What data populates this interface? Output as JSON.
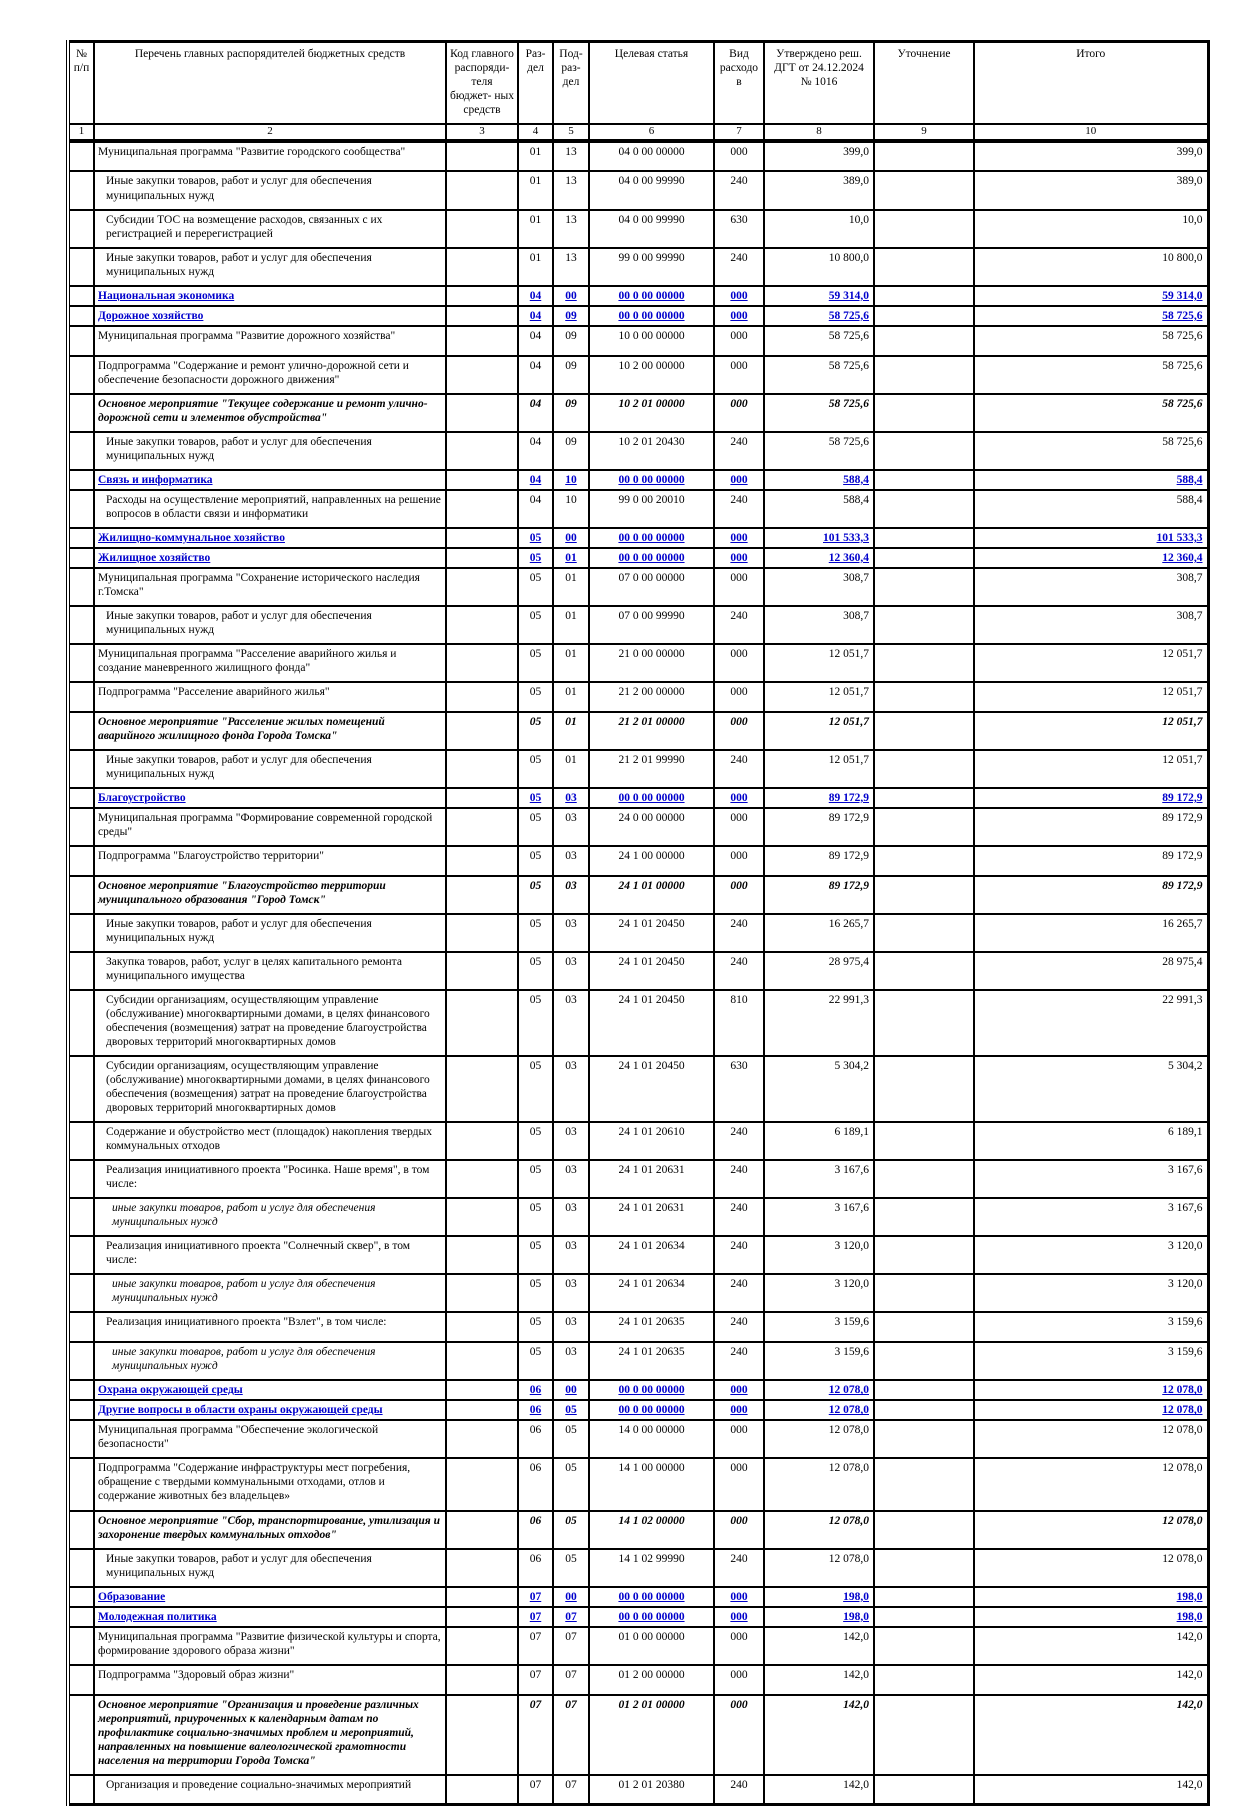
{
  "colors": {
    "section_blue": "#0000cc",
    "text_black": "#000000",
    "border_black": "#000000",
    "page_background": "#ffffff"
  },
  "table": {
    "header": {
      "columns": [
        {
          "num": "1",
          "label": "№ п/п"
        },
        {
          "num": "2",
          "label": "Перечень главных распорядителей бюджетных средств"
        },
        {
          "num": "3",
          "label": "Код главного распоряди- теля бюджет- ных средств"
        },
        {
          "num": "4",
          "label": "Раз- дел"
        },
        {
          "num": "5",
          "label": "Под- раз- дел"
        },
        {
          "num": "6",
          "label": "Целевая статья"
        },
        {
          "num": "7",
          "label": "Вид расходов"
        },
        {
          "num": "8",
          "label": "Утверждено реш. ДГТ от 24.12.2024 № 1016"
        },
        {
          "num": "9",
          "label": "Уточнение"
        },
        {
          "num": "10",
          "label": "Итого"
        }
      ]
    },
    "rows": [
      {
        "name": "Муниципальная программа \"Развитие городского сообщества\"",
        "rd": "01",
        "prd": "13",
        "cs": "04 0 00 00000",
        "vr": "000",
        "approved": "399,0",
        "refine": "",
        "total": "399,0",
        "style": "normal",
        "indent": 0
      },
      {
        "name": "Иные закупки товаров, работ и услуг для обеспечения муниципальных нужд",
        "rd": "01",
        "prd": "13",
        "cs": "04 0 00 99990",
        "vr": "240",
        "approved": "389,0",
        "refine": "",
        "total": "389,0",
        "style": "normal",
        "indent": 1
      },
      {
        "name": "Субсидии ТОС на возмещение расходов, связанных с их регистрацией и перерегистрацией",
        "rd": "01",
        "prd": "13",
        "cs": "04 0 00 99990",
        "vr": "630",
        "approved": "10,0",
        "refine": "",
        "total": "10,0",
        "style": "normal",
        "indent": 1
      },
      {
        "name": "Иные закупки товаров, работ и услуг для обеспечения муниципальных нужд",
        "rd": "01",
        "prd": "13",
        "cs": "99 0 00 99990",
        "vr": "240",
        "approved": "10 800,0",
        "refine": "",
        "total": "10 800,0",
        "style": "normal",
        "indent": 1
      },
      {
        "name": "Национальная экономика",
        "rd": "04",
        "prd": "00",
        "cs": "00 0 00 00000",
        "vr": "000",
        "approved": "59 314,0",
        "refine": "",
        "total": "59 314,0",
        "style": "section",
        "indent": 0
      },
      {
        "name": "Дорожное хозяйство",
        "rd": "04",
        "prd": "09",
        "cs": "00 0 00 00000",
        "vr": "000",
        "approved": "58 725,6",
        "refine": "",
        "total": "58 725,6",
        "style": "section",
        "indent": 0
      },
      {
        "name": "Муниципальная программа \"Развитие дорожного хозяйства\"",
        "rd": "04",
        "prd": "09",
        "cs": "10 0 00 00000",
        "vr": "000",
        "approved": "58 725,6",
        "refine": "",
        "total": "58 725,6",
        "style": "normal",
        "indent": 0
      },
      {
        "name": "Подпрограмма \"Содержание и ремонт улично-дорожной сети и обеспечение безопасности дорожного движения\"",
        "rd": "04",
        "prd": "09",
        "cs": "10 2 00 00000",
        "vr": "000",
        "approved": "58 725,6",
        "refine": "",
        "total": "58 725,6",
        "style": "normal",
        "indent": 0
      },
      {
        "name": "Основное мероприятие \"Текущее содержание и ремонт улично-дорожной сети и элементов обустройства\"",
        "rd": "04",
        "prd": "09",
        "cs": "10 2 01 00000",
        "vr": "000",
        "approved": "58 725,6",
        "refine": "",
        "total": "58 725,6",
        "style": "main-italic",
        "indent": 0
      },
      {
        "name": "Иные закупки товаров, работ и услуг для обеспечения муниципальных нужд",
        "rd": "04",
        "prd": "09",
        "cs": "10 2 01 20430",
        "vr": "240",
        "approved": "58 725,6",
        "refine": "",
        "total": "58 725,6",
        "style": "normal",
        "indent": 1
      },
      {
        "name": "Связь и информатика",
        "rd": "04",
        "prd": "10",
        "cs": "00 0 00 00000",
        "vr": "000",
        "approved": "588,4",
        "refine": "",
        "total": "588,4",
        "style": "section",
        "indent": 0
      },
      {
        "name": "Расходы на осуществление мероприятий, направленных на решение вопросов в области связи и информатики",
        "rd": "04",
        "prd": "10",
        "cs": "99 0 00 20010",
        "vr": "240",
        "approved": "588,4",
        "refine": "",
        "total": "588,4",
        "style": "normal",
        "indent": 1
      },
      {
        "name": "Жилищно-коммунальное хозяйство",
        "rd": "05",
        "prd": "00",
        "cs": "00 0 00 00000",
        "vr": "000",
        "approved": "101 533,3",
        "refine": "",
        "total": "101 533,3",
        "style": "section",
        "indent": 0
      },
      {
        "name": "Жилищное хозяйство",
        "rd": "05",
        "prd": "01",
        "cs": "00 0 00 00000",
        "vr": "000",
        "approved": "12 360,4",
        "refine": "",
        "total": "12 360,4",
        "style": "section",
        "indent": 0
      },
      {
        "name": "Муниципальная программа \"Сохранение исторического наследия г.Томска\"",
        "rd": "05",
        "prd": "01",
        "cs": "07 0 00 00000",
        "vr": "000",
        "approved": "308,7",
        "refine": "",
        "total": "308,7",
        "style": "normal",
        "indent": 0
      },
      {
        "name": "Иные закупки товаров, работ и услуг для обеспечения муниципальных нужд",
        "rd": "05",
        "prd": "01",
        "cs": "07 0 00 99990",
        "vr": "240",
        "approved": "308,7",
        "refine": "",
        "total": "308,7",
        "style": "normal",
        "indent": 1
      },
      {
        "name": "Муниципальная программа \"Расселение аварийного жилья и создание маневренного жилищного фонда\"",
        "rd": "05",
        "prd": "01",
        "cs": "21 0 00 00000",
        "vr": "000",
        "approved": "12 051,7",
        "refine": "",
        "total": "12 051,7",
        "style": "normal",
        "indent": 0
      },
      {
        "name": "Подпрограмма \"Расселение аварийного жилья\"",
        "rd": "05",
        "prd": "01",
        "cs": "21 2 00 00000",
        "vr": "000",
        "approved": "12 051,7",
        "refine": "",
        "total": "12 051,7",
        "style": "normal",
        "indent": 0
      },
      {
        "name": "Основное мероприятие \"Расселение жилых помещений аварийного жилищного фонда Города Томска\"",
        "rd": "05",
        "prd": "01",
        "cs": "21 2 01 00000",
        "vr": "000",
        "approved": "12 051,7",
        "refine": "",
        "total": "12 051,7",
        "style": "main-italic",
        "indent": 0
      },
      {
        "name": "Иные закупки товаров, работ и услуг для обеспечения муниципальных нужд",
        "rd": "05",
        "prd": "01",
        "cs": "21 2 01 99990",
        "vr": "240",
        "approved": "12 051,7",
        "refine": "",
        "total": "12 051,7",
        "style": "normal",
        "indent": 1
      },
      {
        "name": "Благоустройство",
        "rd": "05",
        "prd": "03",
        "cs": "00 0 00 00000",
        "vr": "000",
        "approved": "89 172,9",
        "refine": "",
        "total": "89 172,9",
        "style": "section",
        "indent": 0
      },
      {
        "name": "Муниципальная программа \"Формирование современной городской среды\"",
        "rd": "05",
        "prd": "03",
        "cs": "24 0 00 00000",
        "vr": "000",
        "approved": "89 172,9",
        "refine": "",
        "total": "89 172,9",
        "style": "normal",
        "indent": 0
      },
      {
        "name": "Подпрограмма \"Благоустройство территории\"",
        "rd": "05",
        "prd": "03",
        "cs": "24 1 00 00000",
        "vr": "000",
        "approved": "89 172,9",
        "refine": "",
        "total": "89 172,9",
        "style": "normal",
        "indent": 0
      },
      {
        "name": "Основное мероприятие \"Благоустройство территории муниципального образования \"Город Томск\"",
        "rd": "05",
        "prd": "03",
        "cs": "24 1 01 00000",
        "vr": "000",
        "approved": "89 172,9",
        "refine": "",
        "total": "89 172,9",
        "style": "main-italic",
        "indent": 0
      },
      {
        "name": "Иные закупки товаров, работ и услуг для обеспечения муниципальных нужд",
        "rd": "05",
        "prd": "03",
        "cs": "24 1 01 20450",
        "vr": "240",
        "approved": "16 265,7",
        "refine": "",
        "total": "16 265,7",
        "style": "normal",
        "indent": 1
      },
      {
        "name": "Закупка товаров, работ, услуг в целях капитального ремонта муниципального имущества",
        "rd": "05",
        "prd": "03",
        "cs": "24 1 01 20450",
        "vr": "240",
        "approved": "28 975,4",
        "refine": "",
        "total": "28 975,4",
        "style": "normal",
        "indent": 1
      },
      {
        "name": "Субсидии организациям, осуществляющим управление (обслуживание)  многоквартирными домами, в целях финансового обеспечения (возмещения) затрат на проведение благоустройства дворовых территорий многоквартирных домов",
        "rd": "05",
        "prd": "03",
        "cs": "24 1 01 20450",
        "vr": "810",
        "approved": "22 991,3",
        "refine": "",
        "total": "22 991,3",
        "style": "normal",
        "indent": 1
      },
      {
        "name": "Субсидии организациям, осуществляющим управление (обслуживание)  многоквартирными домами, в целях финансового обеспечения (возмещения) затрат на проведение благоустройства дворовых территорий многоквартирных домов",
        "rd": "05",
        "prd": "03",
        "cs": "24 1 01 20450",
        "vr": "630",
        "approved": "5 304,2",
        "refine": "",
        "total": "5 304,2",
        "style": "normal",
        "indent": 1
      },
      {
        "name": "Содержание и обустройство мест (площадок) накопления твердых коммунальных отходов",
        "rd": "05",
        "prd": "03",
        "cs": "24 1 01 20610",
        "vr": "240",
        "approved": "6 189,1",
        "refine": "",
        "total": "6 189,1",
        "style": "normal",
        "indent": 1
      },
      {
        "name": "Реализация инициативного проекта \"Росинка. Наше время\", в том числе:",
        "rd": "05",
        "prd": "03",
        "cs": "24 1 01 20631",
        "vr": "240",
        "approved": "3 167,6",
        "refine": "",
        "total": "3 167,6",
        "style": "normal",
        "indent": 1
      },
      {
        "name": "иные закупки товаров, работ и услуг для обеспечения муниципальных нужд",
        "rd": "05",
        "prd": "03",
        "cs": "24 1 01 20631",
        "vr": "240",
        "approved": "3 167,6",
        "refine": "",
        "total": "3 167,6",
        "style": "sub-italic",
        "indent": 2
      },
      {
        "name": "Реализация инициативного проекта \"Солнечный сквер\", в том числе:",
        "rd": "05",
        "prd": "03",
        "cs": "24 1 01 20634",
        "vr": "240",
        "approved": "3 120,0",
        "refine": "",
        "total": "3 120,0",
        "style": "normal",
        "indent": 1
      },
      {
        "name": "иные закупки товаров, работ и услуг для обеспечения муниципальных нужд",
        "rd": "05",
        "prd": "03",
        "cs": "24 1 01 20634",
        "vr": "240",
        "approved": "3 120,0",
        "refine": "",
        "total": "3 120,0",
        "style": "sub-italic",
        "indent": 2
      },
      {
        "name": "Реализация инициативного проекта \"Взлет\", в том числе:",
        "rd": "05",
        "prd": "03",
        "cs": "24 1 01 20635",
        "vr": "240",
        "approved": "3 159,6",
        "refine": "",
        "total": "3 159,6",
        "style": "normal",
        "indent": 1
      },
      {
        "name": "иные закупки товаров, работ и услуг для обеспечения муниципальных нужд",
        "rd": "05",
        "prd": "03",
        "cs": "24 1 01 20635",
        "vr": "240",
        "approved": "3 159,6",
        "refine": "",
        "total": "3 159,6",
        "style": "sub-italic",
        "indent": 2
      },
      {
        "name": "Охрана окружающей среды",
        "rd": "06",
        "prd": "00",
        "cs": "00 0 00 00000",
        "vr": "000",
        "approved": "12 078,0",
        "refine": "",
        "total": "12 078,0",
        "style": "section",
        "indent": 0
      },
      {
        "name": "Другие вопросы в области охраны окружающей среды",
        "rd": "06",
        "prd": "05",
        "cs": "00 0 00 00000",
        "vr": "000",
        "approved": "12 078,0",
        "refine": "",
        "total": "12 078,0",
        "style": "section",
        "indent": 0
      },
      {
        "name": "Муниципальная программа \"Обеспечение экологической безопасности\"",
        "rd": "06",
        "prd": "05",
        "cs": "14 0 00 00000",
        "vr": "000",
        "approved": "12 078,0",
        "refine": "",
        "total": "12 078,0",
        "style": "normal",
        "indent": 0
      },
      {
        "name": "Подпрограмма \"Содержание инфраструктуры мест погребения, обращение с твердыми коммунальными отходами, отлов и содержание животных без владельцев»",
        "rd": "06",
        "prd": "05",
        "cs": "14 1 00 00000",
        "vr": "000",
        "approved": "12 078,0",
        "refine": "",
        "total": "12 078,0",
        "style": "normal",
        "indent": 0
      },
      {
        "name": "Основное мероприятие \"Сбор, транспортирование, утилизация и захоронение твердых коммунальных отходов\"",
        "rd": "06",
        "prd": "05",
        "cs": "14 1 02 00000",
        "vr": "000",
        "approved": "12 078,0",
        "refine": "",
        "total": "12 078,0",
        "style": "main-italic",
        "indent": 0
      },
      {
        "name": "Иные закупки товаров, работ и услуг для обеспечения муниципальных нужд",
        "rd": "06",
        "prd": "05",
        "cs": "14 1 02 99990",
        "vr": "240",
        "approved": "12 078,0",
        "refine": "",
        "total": "12 078,0",
        "style": "normal",
        "indent": 1
      },
      {
        "name": "Образование",
        "rd": "07",
        "prd": "00",
        "cs": "00 0 00 00000",
        "vr": "000",
        "approved": "198,0",
        "refine": "",
        "total": "198,0",
        "style": "section",
        "indent": 0
      },
      {
        "name": "Молодежная политика",
        "rd": "07",
        "prd": "07",
        "cs": "00 0 00 00000",
        "vr": "000",
        "approved": "198,0",
        "refine": "",
        "total": "198,0",
        "style": "section",
        "indent": 0
      },
      {
        "name": "Муниципальная программа \"Развитие физической культуры и спорта, формирование здорового образа жизни\"",
        "rd": "07",
        "prd": "07",
        "cs": "01 0 00 00000",
        "vr": "000",
        "approved": "142,0",
        "refine": "",
        "total": "142,0",
        "style": "normal",
        "indent": 0
      },
      {
        "name": "Подпрограмма \"Здоровый образ жизни\"",
        "rd": "07",
        "prd": "07",
        "cs": "01 2 00 00000",
        "vr": "000",
        "approved": "142,0",
        "refine": "",
        "total": "142,0",
        "style": "normal",
        "indent": 0
      },
      {
        "name": "Основное мероприятие \"Организация и проведение различных мероприятий, приуроченных к календарным датам по профилактике социально-значимых проблем и мероприятий, направленных на повышение валеологической грамотности населения на территории Города Томска\"",
        "rd": "07",
        "prd": "07",
        "cs": "01 2 01 00000",
        "vr": "000",
        "approved": "142,0",
        "refine": "",
        "total": "142,0",
        "style": "main-italic",
        "indent": 0
      },
      {
        "name": "Организация и проведение социально-значимых мероприятий",
        "rd": "07",
        "prd": "07",
        "cs": "01 2 01 20380",
        "vr": "240",
        "approved": "142,0",
        "refine": "",
        "total": "142,0",
        "style": "normal",
        "indent": 1
      }
    ]
  }
}
